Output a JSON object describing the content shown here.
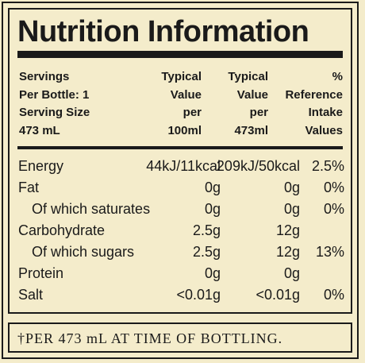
{
  "title": "Nutrition Information",
  "header": {
    "servings": "Servings\nPer Bottle: 1\nServing Size\n473 mL",
    "typical1": "Typical\nValue\nper\n100ml",
    "typical2": "Typical\nValue\nper\n473ml",
    "reference": "%\nReference\nIntake\nValues"
  },
  "rows": [
    {
      "name": "Energy",
      "v1": "44kJ/11kcal",
      "v2": "209kJ/50kcal",
      "ri": "2.5%"
    },
    {
      "name": "Fat",
      "v1": "0g",
      "v2": "0g",
      "ri": "0%"
    },
    {
      "name": "Of which saturates",
      "v1": "0g",
      "v2": "0g",
      "ri": "0%"
    },
    {
      "name": "Carbohydrate",
      "v1": "2.5g",
      "v2": "12g",
      "ri": ""
    },
    {
      "name": "Of which sugars",
      "v1": "2.5g",
      "v2": "12g",
      "ri": "13%"
    },
    {
      "name": "Protein",
      "v1": "0g",
      "v2": "0g",
      "ri": ""
    },
    {
      "name": "Salt",
      "v1": "<0.01g",
      "v2": "<0.01g",
      "ri": "0%"
    }
  ],
  "footnote": "†PER 473 mL AT TIME OF BOTTLING."
}
